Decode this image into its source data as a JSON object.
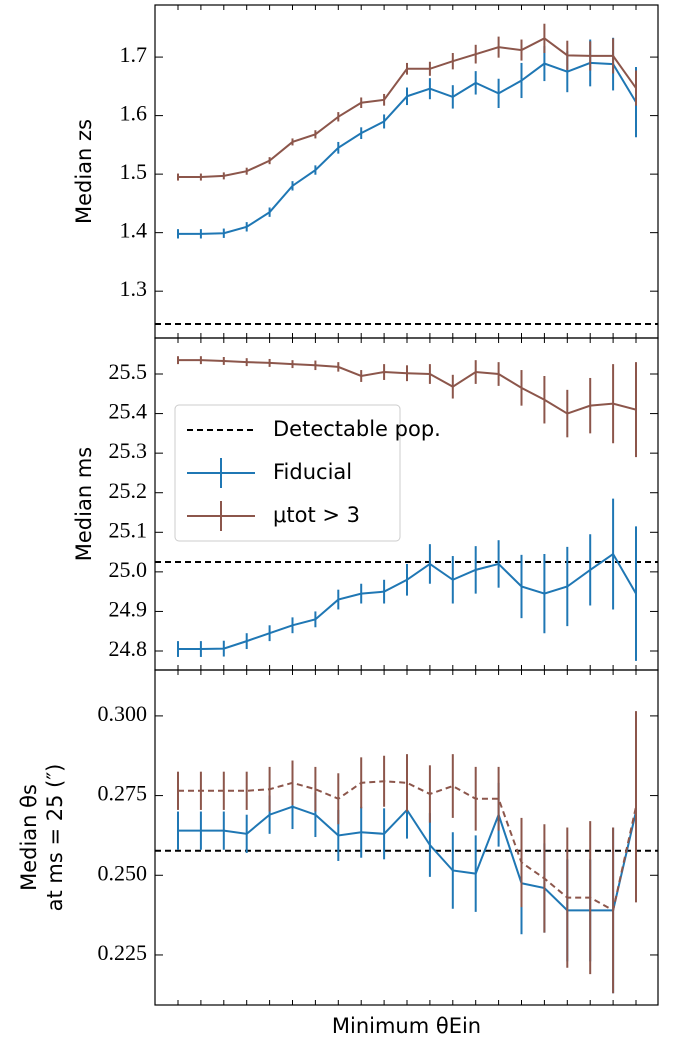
{
  "chart_data": [
    {
      "type": "line",
      "ylabel": "Median zs",
      "categories": [
        null,
        null,
        null,
        null,
        null,
        null,
        null,
        null,
        null,
        null,
        null,
        null,
        null,
        null,
        null,
        null,
        null,
        null,
        null,
        null,
        null
      ],
      "ylim": [
        1.22,
        1.789
      ],
      "yticks": [
        1.3,
        1.4,
        1.5,
        1.6,
        1.7
      ],
      "reference_line": 1.244,
      "series": [
        {
          "color": "#1f77b4",
          "linestyle": "solid",
          "values": [
            1.398,
            1.398,
            1.399,
            1.41,
            1.435,
            1.48,
            1.507,
            1.545,
            1.57,
            1.59,
            1.633,
            1.646,
            1.632,
            1.656,
            1.638,
            1.66,
            1.689,
            1.675,
            1.69,
            1.688,
            1.623
          ],
          "errors": [
            0.008,
            0.008,
            0.008,
            0.008,
            0.008,
            0.008,
            0.008,
            0.01,
            0.01,
            0.012,
            0.015,
            0.018,
            0.02,
            0.02,
            0.025,
            0.03,
            0.03,
            0.035,
            0.04,
            0.045,
            0.06
          ]
        },
        {
          "color": "#8c564b",
          "linestyle": "solid",
          "values": [
            1.495,
            1.495,
            1.497,
            1.505,
            1.523,
            1.555,
            1.568,
            1.598,
            1.622,
            1.627,
            1.68,
            1.68,
            1.693,
            1.705,
            1.717,
            1.712,
            1.732,
            1.703,
            1.702,
            1.702,
            1.647
          ],
          "errors": [
            0.006,
            0.006,
            0.006,
            0.006,
            0.006,
            0.006,
            0.007,
            0.008,
            0.009,
            0.01,
            0.01,
            0.012,
            0.014,
            0.016,
            0.018,
            0.018,
            0.025,
            0.025,
            0.025,
            0.03,
            0.03
          ]
        }
      ]
    },
    {
      "type": "line",
      "ylabel": "Median ms",
      "categories": [
        null,
        null,
        null,
        null,
        null,
        null,
        null,
        null,
        null,
        null,
        null,
        null,
        null,
        null,
        null,
        null,
        null,
        null,
        null,
        null,
        null
      ],
      "ylim": [
        24.752,
        25.591
      ],
      "yticks": [
        24.8,
        24.9,
        {
          "value": 25.0,
          "label": "25.0"
        },
        25.1,
        25.2,
        25.3,
        25.4,
        25.5
      ],
      "reference_line": 25.025,
      "reference_name": "Detectable pop.",
      "legend": "center left",
      "series": [
        {
          "name": "Fiducial",
          "color": "#1f77b4",
          "linestyle": "solid",
          "values": [
            24.805,
            24.805,
            24.806,
            24.825,
            24.845,
            24.865,
            24.88,
            24.93,
            24.945,
            24.95,
            24.98,
            25.02,
            24.98,
            25.005,
            25.02,
            24.963,
            24.945,
            24.963,
            25.005,
            25.045,
            24.945
          ],
          "errors": [
            0.02,
            0.02,
            0.02,
            0.02,
            0.02,
            0.02,
            0.02,
            0.025,
            0.025,
            0.03,
            0.04,
            0.05,
            0.06,
            0.06,
            0.06,
            0.08,
            0.1,
            0.1,
            0.09,
            0.14,
            0.17
          ]
        },
        {
          "name": "μtot > 3",
          "color": "#8c564b",
          "linestyle": "solid",
          "values": [
            25.535,
            25.535,
            25.533,
            25.53,
            25.528,
            25.525,
            25.522,
            25.518,
            25.495,
            25.505,
            25.502,
            25.5,
            25.468,
            25.505,
            25.5,
            25.465,
            25.435,
            25.4,
            25.42,
            25.425,
            25.41
          ],
          "errors": [
            0.01,
            0.01,
            0.01,
            0.01,
            0.01,
            0.01,
            0.012,
            0.012,
            0.015,
            0.02,
            0.02,
            0.025,
            0.03,
            0.03,
            0.03,
            0.045,
            0.06,
            0.06,
            0.07,
            0.1,
            0.12
          ]
        }
      ]
    },
    {
      "type": "line",
      "ylabel": [
        "Median θs",
        "at ms = 25 (″)"
      ],
      "xlabel": "Minimum θEin",
      "categories": [
        null,
        null,
        null,
        null,
        null,
        null,
        null,
        null,
        null,
        null,
        null,
        null,
        null,
        null,
        null,
        null,
        null,
        null,
        null,
        null,
        null
      ],
      "ylim": [
        0.2093,
        0.3144
      ],
      "yticks": [
        {
          "value": 0.225,
          "label": "0.225"
        },
        {
          "value": 0.25,
          "label": "0.250"
        },
        {
          "value": 0.275,
          "label": "0.275"
        },
        {
          "value": 0.3,
          "label": "0.300"
        }
      ],
      "reference_line": 0.2577,
      "series": [
        {
          "color": "#1f77b4",
          "linestyle": "solid",
          "values": [
            0.264,
            0.264,
            0.264,
            0.263,
            0.269,
            0.2715,
            0.269,
            0.2625,
            0.2635,
            0.263,
            0.2705,
            0.2595,
            0.2515,
            0.2505,
            0.269,
            0.2475,
            0.246,
            0.239,
            0.239,
            0.239,
            0.27
          ],
          "errors": [
            0.006,
            0.006,
            0.006,
            0.006,
            0.006,
            0.007,
            0.007,
            0.008,
            0.008,
            0.008,
            0.009,
            0.01,
            0.012,
            0.012,
            0.01,
            0.016,
            0.014,
            0.016,
            0.016,
            0.026,
            0.028
          ]
        },
        {
          "color": "#8c564b",
          "linestyle": "dashed",
          "values": [
            0.2765,
            0.2765,
            0.2765,
            0.2765,
            0.277,
            0.279,
            0.277,
            0.274,
            0.279,
            0.2795,
            0.279,
            0.2755,
            0.278,
            0.274,
            0.274,
            0.254,
            0.249,
            0.243,
            0.243,
            0.239,
            0.2715
          ],
          "errors": [
            0.006,
            0.006,
            0.006,
            0.006,
            0.007,
            0.007,
            0.007,
            0.008,
            0.008,
            0.008,
            0.009,
            0.009,
            0.01,
            0.01,
            0.01,
            0.014,
            0.017,
            0.022,
            0.024,
            0.026,
            0.03
          ]
        }
      ]
    }
  ]
}
